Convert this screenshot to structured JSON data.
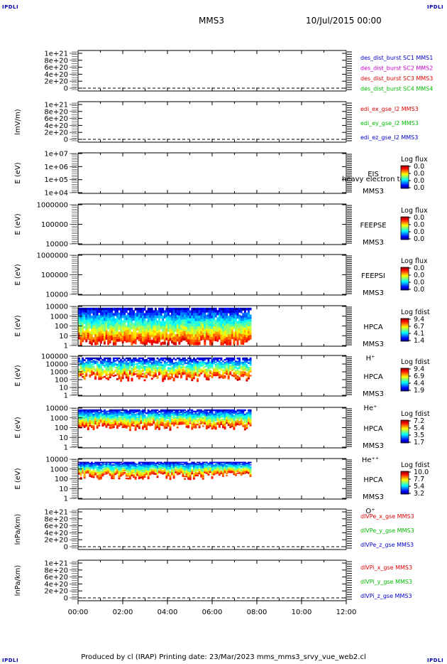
{
  "corner_label": "IPDLI",
  "header": {
    "spacecraft": "MMS3",
    "date": "10/Jul/2015 00:00"
  },
  "footer": {
    "text": "Produced by cl (IRAP)   Printing date: 23/Mar/2023   mms_mms3_srvy_vue_web2.cl"
  },
  "x_axis": {
    "ticks": [
      "00:00",
      "02:00",
      "04:00",
      "06:00",
      "08:00",
      "10:00",
      "12:00"
    ]
  },
  "panels": [
    {
      "type": "line",
      "ylabel": "",
      "yticks": [
        "1e+21",
        "8e+20",
        "6e+20",
        "4e+20",
        "2e+20",
        "0"
      ],
      "labels": [
        {
          "text": "des_dist_burst SC1 MMS1",
          "color": "#0000cc"
        },
        {
          "text": "des_dist_burst SC2 MMS2",
          "color": "#cc00cc"
        },
        {
          "text": "des_dist_burst SC3 MMS3",
          "color": "#dd0000"
        },
        {
          "text": "des_dist_burst SC4 MMS4",
          "color": "#00bb00"
        }
      ]
    },
    {
      "type": "line",
      "ylabel": "lmV/m)",
      "yticks": [
        "1e+21",
        "8e+20",
        "6e+20",
        "4e+20",
        "2e+20",
        "0"
      ],
      "labels": [
        {
          "text": "edi_ex_gse_l2 MMS3",
          "color": "#dd0000"
        },
        {
          "text": "edi_ey_gse_l2 MMS3",
          "color": "#00bb00"
        },
        {
          "text": "edi_ez_gse_l2 MMS3",
          "color": "#0000cc"
        }
      ]
    },
    {
      "type": "spec",
      "ylabel": "E (eV)",
      "yticks": [
        "1e+07",
        "1e+06",
        "1e+05",
        "1e+04"
      ],
      "name_lines": [
        "EIS",
        "MMS3"
      ],
      "overlay": "heavy electron to",
      "sub": "",
      "cbar_title": "Log flux",
      "cbar_ticks": [
        "0.0",
        "0.0",
        "0.0",
        "0.0"
      ]
    },
    {
      "type": "spec",
      "ylabel": "E (eV)",
      "yticks": [
        "1000000",
        "100000",
        "10000"
      ],
      "name_lines": [
        "FEEPSE",
        "MMS3"
      ],
      "sub": "",
      "cbar_title": "Log flux",
      "cbar_ticks": [
        "0.0",
        "0.0",
        "0.0",
        "0.0"
      ]
    },
    {
      "type": "spec",
      "ylabel": "E (eV)",
      "yticks": [
        "1000000",
        "100000",
        "10000"
      ],
      "name_lines": [
        "FEEPSI",
        "MMS3"
      ],
      "sub": "",
      "cbar_title": "Log flux",
      "cbar_ticks": [
        "0.0",
        "0.0",
        "0.0",
        "0.0"
      ]
    },
    {
      "type": "spec",
      "ylabel": "E (eV)",
      "yticks": [
        "10000",
        "1000",
        "100",
        "10",
        "1"
      ],
      "name_lines": [
        "HPCA",
        "MMS3"
      ],
      "sub": "H⁺",
      "cbar_title": "Log fdist",
      "cbar_ticks": [
        "9.4",
        "6.7",
        "4.1",
        "1.4"
      ]
    },
    {
      "type": "spec",
      "ylabel": "E (eV)",
      "yticks": [
        "100000",
        "10000",
        "1000",
        "100",
        "10",
        "1"
      ],
      "name_lines": [
        "HPCA",
        "MMS3"
      ],
      "sub": "He⁺",
      "cbar_title": "Log fdist",
      "cbar_ticks": [
        "9.4",
        "6.9",
        "4.4",
        "1.9"
      ]
    },
    {
      "type": "spec",
      "ylabel": "E (eV)",
      "yticks": [
        "10000",
        "1000",
        "100",
        "10",
        "1"
      ],
      "name_lines": [
        "HPCA",
        "MMS3"
      ],
      "sub": "He⁺⁺",
      "cbar_title": "Log fdist",
      "cbar_ticks": [
        "7.2",
        "5.4",
        "3.5",
        "1.7"
      ]
    },
    {
      "type": "spec",
      "ylabel": "E (eV)",
      "yticks": [
        "10000",
        "1000",
        "100",
        "10",
        "1"
      ],
      "name_lines": [
        "HPCA",
        "MMS3"
      ],
      "sub": "O⁺",
      "cbar_title": "Log fdist",
      "cbar_ticks": [
        "10.0",
        "7.7",
        "5.4",
        "3.2"
      ]
    },
    {
      "type": "line",
      "ylabel": "lnPa/km)",
      "yticks": [
        "1e+21",
        "8e+20",
        "6e+20",
        "4e+20",
        "2e+20",
        "0"
      ],
      "labels": [
        {
          "text": "dlVPe_x_gse MMS3",
          "color": "#dd0000"
        },
        {
          "text": "dlVPe_y_gse MMS3",
          "color": "#00bb00"
        },
        {
          "text": "dlVPe_z_gse MMS3",
          "color": "#0000cc"
        }
      ]
    },
    {
      "type": "line",
      "ylabel": "lnPa/km)",
      "yticks": [
        "1e+21",
        "8e+20",
        "6e+20",
        "4e+20",
        "2e+20",
        "0"
      ],
      "labels": [
        {
          "text": "dlVPi_x_gse MMS3",
          "color": "#dd0000"
        },
        {
          "text": "dlVPi_y_gse MMS3",
          "color": "#00bb00"
        },
        {
          "text": "dlVPi_z_gse MMS3",
          "color": "#0000cc"
        }
      ]
    }
  ],
  "chart_data": {
    "type": "heatmap",
    "title": "MMS3",
    "xlabel": "",
    "x_range": [
      "00:00",
      "12:00"
    ],
    "data_end": "07:45",
    "line_panels_zero": 0,
    "line_panels_ylim": [
      0,
      1e+21
    ],
    "spectrograms": [
      {
        "name": "HPCA H+",
        "ylim": [
          1,
          10000
        ],
        "scale": "log",
        "zlim": [
          1.4,
          9.4
        ]
      },
      {
        "name": "HPCA He+",
        "ylim": [
          1,
          100000
        ],
        "scale": "log",
        "zlim": [
          1.9,
          9.4
        ]
      },
      {
        "name": "HPCA He++",
        "ylim": [
          1,
          10000
        ],
        "scale": "log",
        "zlim": [
          1.7,
          7.2
        ]
      },
      {
        "name": "HPCA O+",
        "ylim": [
          1,
          10000
        ],
        "scale": "log",
        "zlim": [
          3.2,
          10.0
        ]
      }
    ]
  }
}
